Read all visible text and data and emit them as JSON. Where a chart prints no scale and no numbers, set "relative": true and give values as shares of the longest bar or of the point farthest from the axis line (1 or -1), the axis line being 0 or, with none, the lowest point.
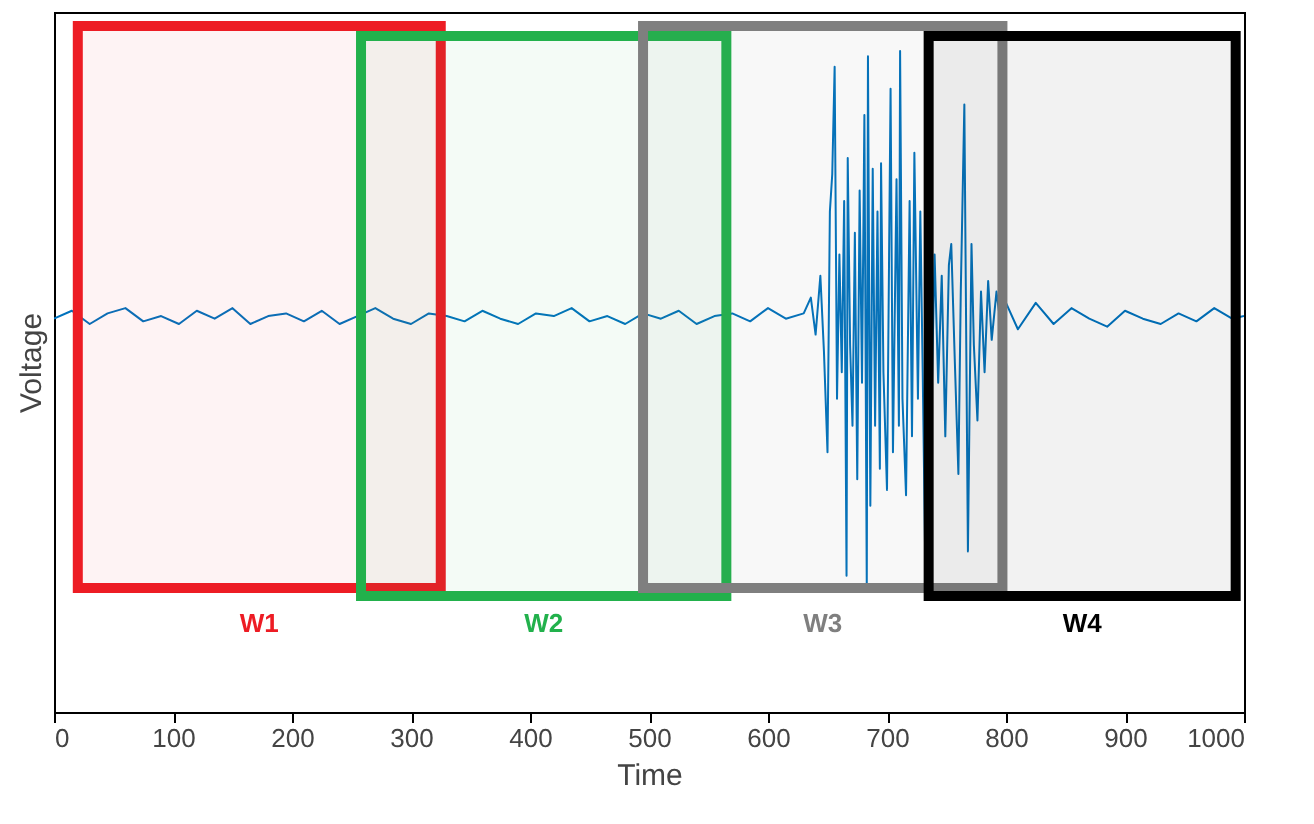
{
  "chart_data": {
    "type": "line",
    "relative": true,
    "xlabel": "Time",
    "ylabel": "Voltage",
    "xlim": [
      0,
      1000
    ],
    "xticks": [
      0,
      100,
      200,
      300,
      400,
      500,
      600,
      700,
      800,
      900,
      1000
    ],
    "grid": false,
    "series": [
      {
        "color": "#0072bd",
        "x": [
          0,
          15,
          30,
          45,
          60,
          75,
          90,
          105,
          120,
          135,
          150,
          165,
          180,
          195,
          210,
          225,
          240,
          255,
          270,
          285,
          300,
          315,
          330,
          345,
          360,
          375,
          390,
          405,
          420,
          435,
          450,
          465,
          480,
          495,
          510,
          525,
          540,
          555,
          570,
          585,
          600,
          615,
          630,
          636,
          640,
          644,
          647,
          650,
          652,
          654,
          656,
          658,
          660,
          662,
          664,
          666,
          667,
          669,
          671,
          673,
          675,
          677,
          679,
          681,
          683,
          684,
          686,
          688,
          690,
          692,
          694,
          695,
          697,
          700,
          703,
          705,
          708,
          710,
          711,
          713,
          716,
          719,
          721,
          723,
          726,
          728,
          730,
          732,
          734,
          737,
          740,
          743,
          746,
          749,
          752,
          754,
          757,
          760,
          762,
          765,
          768,
          771,
          773,
          776,
          779,
          782,
          785,
          788,
          792,
          796,
          800,
          810,
          825,
          840,
          855,
          870,
          885,
          900,
          915,
          930,
          945,
          960,
          975,
          990,
          1000
        ],
        "values": [
          0.595,
          0.607,
          0.587,
          0.603,
          0.611,
          0.591,
          0.599,
          0.587,
          0.607,
          0.595,
          0.611,
          0.587,
          0.599,
          0.603,
          0.591,
          0.607,
          0.587,
          0.599,
          0.611,
          0.595,
          0.587,
          0.603,
          0.599,
          0.591,
          0.607,
          0.595,
          0.587,
          0.603,
          0.599,
          0.611,
          0.591,
          0.599,
          0.587,
          0.603,
          0.595,
          0.607,
          0.587,
          0.599,
          0.603,
          0.591,
          0.611,
          0.595,
          0.603,
          0.627,
          0.571,
          0.66,
          0.546,
          0.393,
          0.757,
          0.814,
          0.976,
          0.474,
          0.692,
          0.514,
          0.773,
          0.206,
          0.838,
          0.555,
          0.433,
          0.725,
          0.352,
          0.789,
          0.498,
          0.903,
          0.19,
          0.992,
          0.312,
          0.822,
          0.433,
          0.757,
          0.368,
          0.83,
          0.514,
          0.336,
          0.943,
          0.393,
          0.806,
          0.433,
          1,
          0.474,
          0.328,
          0.773,
          0.417,
          0.846,
          0.474,
          0.757,
          0.514,
          0.247,
          0.854,
          0.433,
          0.692,
          0.498,
          0.66,
          0.417,
          0.676,
          0.708,
          0.53,
          0.36,
          0.636,
          0.919,
          0.243,
          0.708,
          0.555,
          0.441,
          0.636,
          0.514,
          0.652,
          0.563,
          0.636,
          0.579,
          0.619,
          0.579,
          0.619,
          0.587,
          0.611,
          0.595,
          0.583,
          0.607,
          0.595,
          0.587,
          0.603,
          0.591,
          0.611,
          0.595,
          0.599
        ]
      }
    ],
    "bands": [
      {
        "axis": "x",
        "from": 20,
        "to": 325,
        "label": "W1",
        "color": "#ed1c24"
      },
      {
        "axis": "x",
        "from": 258,
        "to": 565,
        "label": "W2",
        "color": "#22b14c"
      },
      {
        "axis": "x",
        "from": 495,
        "to": 797,
        "label": "W3",
        "color": "#7f7f7f"
      },
      {
        "axis": "x",
        "from": 735,
        "to": 993,
        "label": "W4",
        "color": "#000000"
      }
    ]
  }
}
